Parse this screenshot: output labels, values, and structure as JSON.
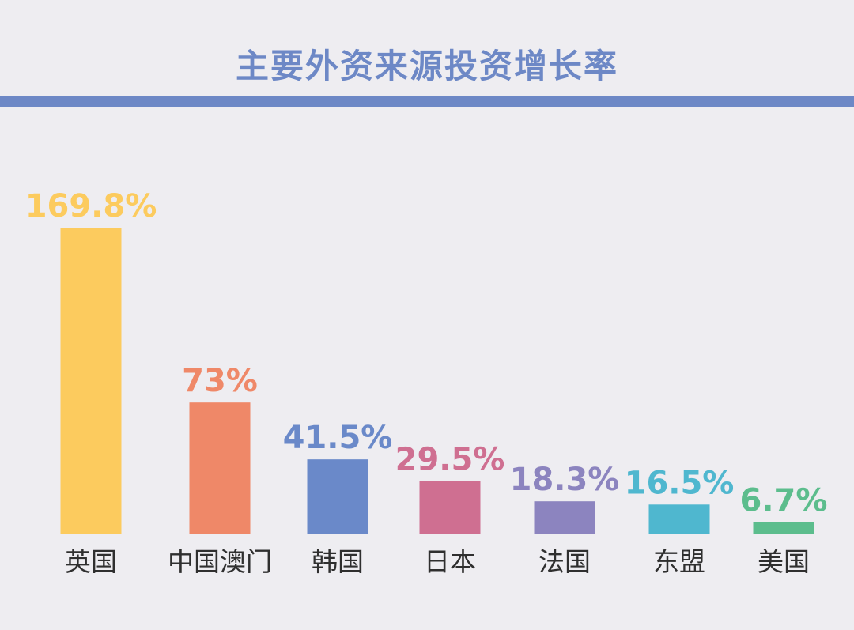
{
  "header": {
    "title": "主要外资来源投资增长率"
  },
  "chart_data": {
    "type": "bar",
    "title": "主要外资来源投资增长率",
    "categories": [
      "英国",
      "中国澳门",
      "韩国",
      "日本",
      "法国",
      "东盟",
      "美国"
    ],
    "values": [
      169.8,
      73,
      41.5,
      29.5,
      18.3,
      16.5,
      6.7
    ],
    "value_labels": [
      "169.8%",
      "73%",
      "41.5%",
      "29.5%",
      "18.3%",
      "16.5%",
      "6.7%"
    ],
    "colors": [
      "#fccb5e",
      "#ef8868",
      "#6a89c9",
      "#cf6f91",
      "#8c84bf",
      "#4fb7cf",
      "#5cbd8d"
    ],
    "xlabel": "",
    "ylabel": "",
    "ylim": [
      0,
      169.8
    ],
    "grid": false,
    "legend": "none"
  }
}
